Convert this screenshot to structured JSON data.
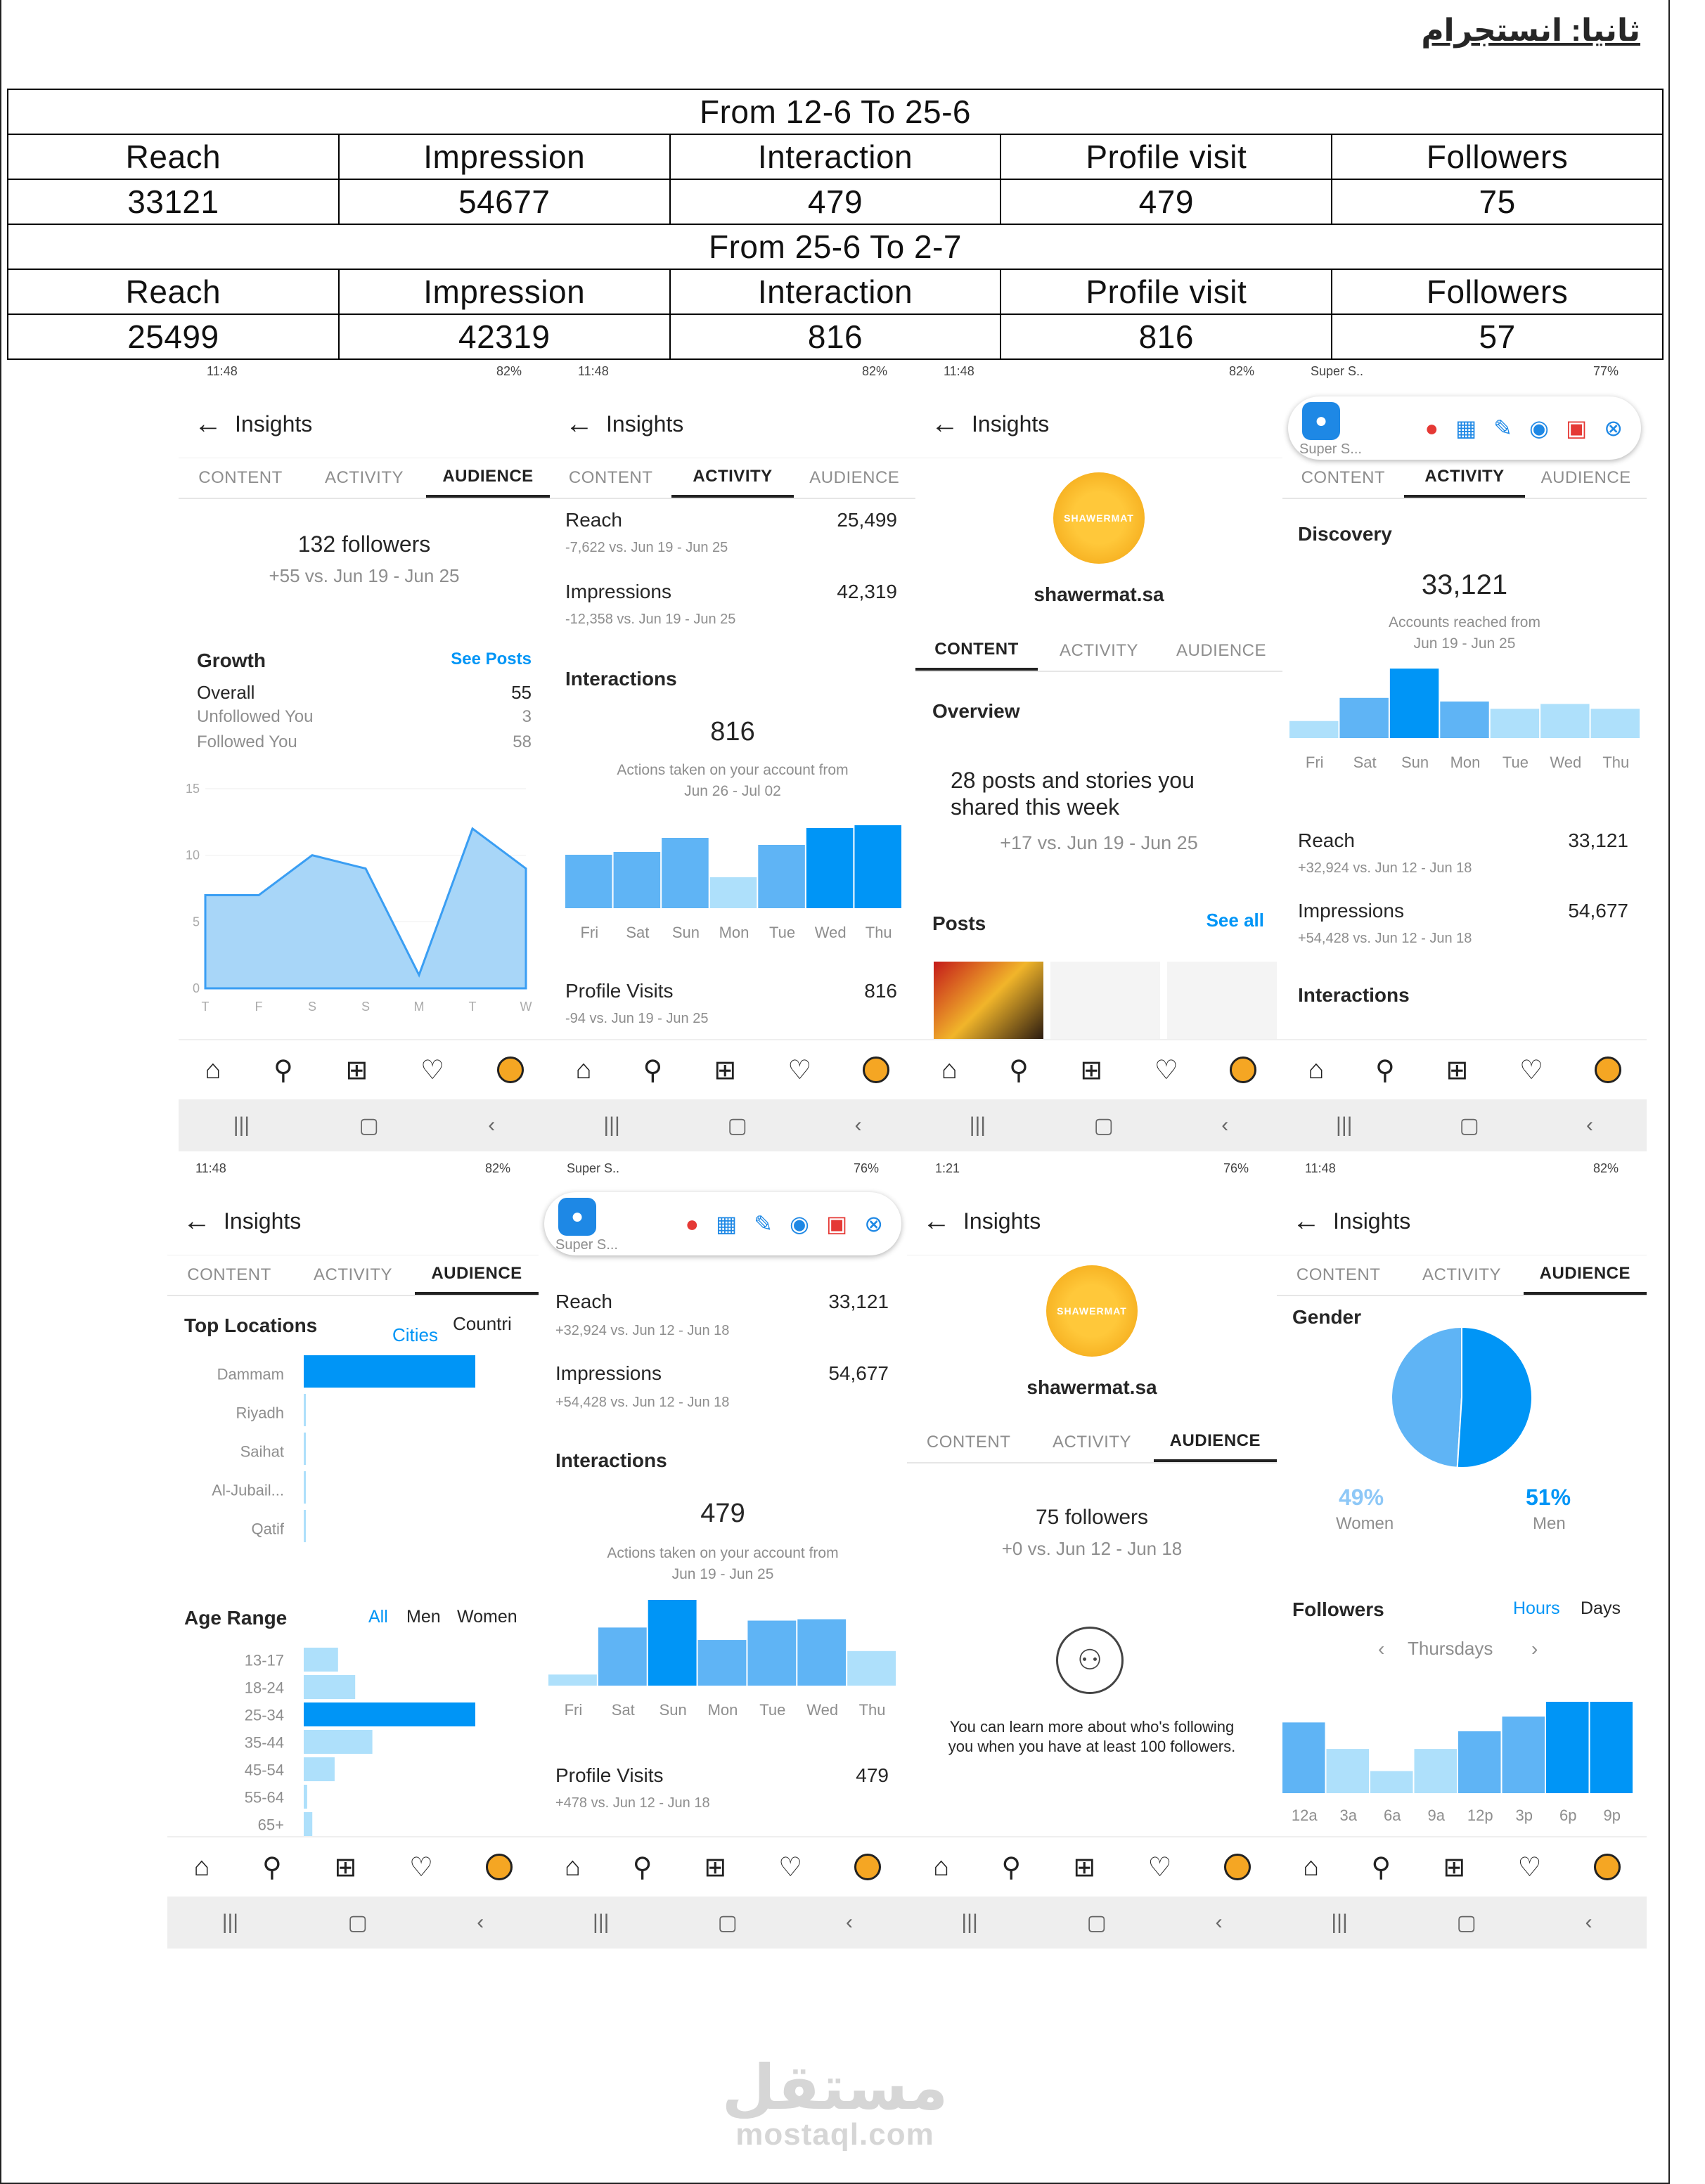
{
  "heading": "ثانيا: انستجرام",
  "table": {
    "period1": "From 12-6 To 25-6",
    "period2": "From 25-6 To 2-7",
    "headers": [
      "Reach",
      "Impression",
      "Interaction",
      "Profile visit",
      "Followers"
    ],
    "row1": [
      "33121",
      "54677",
      "479",
      "479",
      "75"
    ],
    "row2": [
      "25499",
      "42319",
      "816",
      "816",
      "57"
    ]
  },
  "status": {
    "time": "11:48",
    "time2": "1:21",
    "battery82": "82%",
    "battery77": "77%",
    "battery76": "76%",
    "super": "Super S.."
  },
  "common": {
    "insights": "Insights",
    "content": "CONTENT",
    "activity": "ACTIVITY",
    "audience": "AUDIENCE",
    "super_s": "Super S...",
    "back": "←"
  },
  "p1": {
    "followers": "132 followers",
    "compare": "+55 vs. Jun 19 - Jun 25",
    "growth": "Growth",
    "see_posts": "See Posts",
    "overall": "Overall",
    "overall_v": "55",
    "unfollowed": "Unfollowed You",
    "unfollowed_v": "3",
    "followed": "Followed You",
    "followed_v": "58",
    "yticks": [
      "15",
      "10",
      "5",
      "0"
    ],
    "xticks": [
      "T",
      "F",
      "S",
      "S",
      "M",
      "T",
      "W"
    ]
  },
  "p2": {
    "reach": "Reach",
    "reach_v": "25,499",
    "reach_c": "-7,622 vs. Jun 19 - Jun 25",
    "imp": "Impressions",
    "imp_v": "42,319",
    "imp_c": "-12,358 vs. Jun 19 - Jun 25",
    "interactions": "Interactions",
    "num": "816",
    "actions": "Actions taken on your account from",
    "range": "Jun 26 - Jul 02",
    "days": [
      "Fri",
      "Sat",
      "Sun",
      "Mon",
      "Tue",
      "Wed",
      "Thu"
    ],
    "pv": "Profile Visits",
    "pv_v": "816",
    "pv_c": "-94 vs. Jun 19 - Jun 25"
  },
  "p3": {
    "handle": "shawermat.sa",
    "brand": "SHAWERMAT",
    "overview": "Overview",
    "posts_line1": "28 posts and stories you",
    "posts_line2": "shared this week",
    "compare": "+17 vs. Jun 19 - Jun 25",
    "posts": "Posts",
    "see_all": "See all"
  },
  "p4": {
    "discovery": "Discovery",
    "num": "33,121",
    "accounts": "Accounts reached from",
    "range": "Jun 19 - Jun 25",
    "days": [
      "Fri",
      "Sat",
      "Sun",
      "Mon",
      "Tue",
      "Wed",
      "Thu"
    ],
    "reach": "Reach",
    "reach_v": "33,121",
    "reach_c": "+32,924 vs. Jun 12 - Jun 18",
    "imp": "Impressions",
    "imp_v": "54,677",
    "imp_c": "+54,428 vs. Jun 12 - Jun 18",
    "interactions": "Interactions"
  },
  "p5": {
    "top_locations": "Top Locations",
    "cities": "Cities",
    "countries": "Countri",
    "locations": [
      "Dammam",
      "Riyadh",
      "Saihat",
      "Al-Jubail...",
      "Qatif"
    ],
    "age_range": "Age Range",
    "all": "All",
    "men": "Men",
    "women": "Women",
    "ages": [
      "13-17",
      "18-24",
      "25-34",
      "35-44",
      "45-54",
      "55-64",
      "65+"
    ]
  },
  "p6": {
    "reach": "Reach",
    "reach_v": "33,121",
    "reach_c": "+32,924 vs. Jun 12 - Jun 18",
    "imp": "Impressions",
    "imp_v": "54,677",
    "imp_c": "+54,428 vs. Jun 12 - Jun 18",
    "interactions": "Interactions",
    "num": "479",
    "actions": "Actions taken on your account from",
    "range": "Jun 19 - Jun 25",
    "days": [
      "Fri",
      "Sat",
      "Sun",
      "Mon",
      "Tue",
      "Wed",
      "Thu"
    ],
    "pv": "Profile Visits",
    "pv_v": "479",
    "pv_c": "+478 vs. Jun 12 - Jun 18"
  },
  "p7": {
    "handle": "shawermat.sa",
    "brand": "SHAWERMAT",
    "followers": "75 followers",
    "compare": "+0 vs. Jun 12 - Jun 18",
    "note1": "You can learn more about who's following",
    "note2": "you when you have at least 100 followers."
  },
  "p8": {
    "gender": "Gender",
    "women_pct": "49%",
    "women": "Women",
    "men_pct": "51%",
    "men": "Men",
    "followers": "Followers",
    "hours": "Hours",
    "days": "Days",
    "thursdays": "Thursdays",
    "hours_labels": [
      "12a",
      "3a",
      "6a",
      "9a",
      "12p",
      "3p",
      "6p",
      "9p"
    ]
  },
  "watermark": {
    "arabic": "مستقل",
    "latin": "mostaql.com"
  },
  "chart_data": [
    {
      "type": "area",
      "title": "Growth",
      "x": [
        "T",
        "F",
        "S",
        "S",
        "M",
        "T",
        "W"
      ],
      "values": [
        7,
        7,
        10,
        9,
        1,
        12,
        9
      ],
      "ylim": [
        0,
        15
      ]
    },
    {
      "type": "bar",
      "title": "Interactions 816",
      "categories": [
        "Fri",
        "Sat",
        "Sun",
        "Mon",
        "Tue",
        "Wed",
        "Thu"
      ],
      "values": [
        38,
        40,
        50,
        22,
        45,
        57,
        59
      ]
    },
    {
      "type": "bar",
      "title": "Discovery 33,121",
      "categories": [
        "Fri",
        "Sat",
        "Sun",
        "Mon",
        "Tue",
        "Wed",
        "Thu"
      ],
      "values": [
        14,
        33,
        57,
        30,
        24,
        28,
        24
      ]
    },
    {
      "type": "bar",
      "title": "Top Locations",
      "categories": [
        "Dammam",
        "Riyadh",
        "Saihat",
        "Al-Jubail...",
        "Qatif"
      ],
      "values": [
        100,
        1,
        1,
        1,
        1
      ]
    },
    {
      "type": "bar",
      "title": "Age Range",
      "categories": [
        "13-17",
        "18-24",
        "25-34",
        "35-44",
        "45-54",
        "55-64",
        "65+"
      ],
      "values": [
        20,
        30,
        100,
        40,
        18,
        2,
        5
      ]
    },
    {
      "type": "bar",
      "title": "Interactions 479",
      "categories": [
        "Fri",
        "Sat",
        "Sun",
        "Mon",
        "Tue",
        "Wed",
        "Thu"
      ],
      "values": [
        8,
        42,
        62,
        33,
        47,
        48,
        25
      ]
    },
    {
      "type": "pie",
      "title": "Gender",
      "categories": [
        "Women",
        "Men"
      ],
      "values": [
        49,
        51
      ]
    },
    {
      "type": "bar",
      "title": "Followers Hours",
      "categories": [
        "12a",
        "3a",
        "6a",
        "9a",
        "12p",
        "3p",
        "6p",
        "9p"
      ],
      "values": [
        48,
        30,
        15,
        30,
        42,
        52,
        62,
        62
      ]
    }
  ],
  "colors": {
    "blue": "#0095f6",
    "light": "#5fb4f5",
    "pale": "#aee0fb"
  }
}
